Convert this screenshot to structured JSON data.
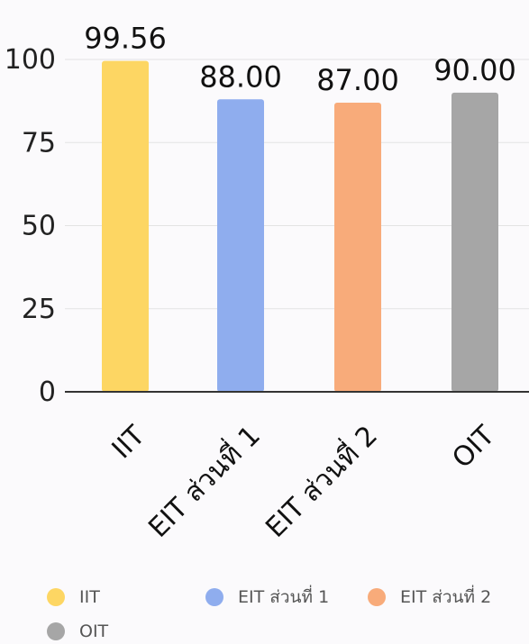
{
  "chart_data": {
    "type": "bar",
    "categories": [
      "IIT",
      "EIT ส่วนที่ 1",
      "EIT ส่วนที่ 2",
      "OIT"
    ],
    "values": [
      99.56,
      88.0,
      87.0,
      90.0
    ],
    "data_labels": [
      "99.56",
      "88.00",
      "87.00",
      "90.00"
    ],
    "colors": [
      "#fdd663",
      "#8fadee",
      "#f8ab7a",
      "#a6a6a6"
    ],
    "yticks": [
      0,
      25,
      50,
      75,
      100
    ],
    "ylim": [
      0,
      100
    ],
    "grid": true,
    "legend_position": "bottom",
    "title": "",
    "xlabel": "",
    "ylabel": ""
  },
  "legend": [
    {
      "label": "IIT",
      "color": "#fdd663"
    },
    {
      "label": "EIT ส่วนที่ 1",
      "color": "#8fadee"
    },
    {
      "label": "EIT ส่วนที่ 2",
      "color": "#f8ab7a"
    },
    {
      "label": "OIT",
      "color": "#a6a6a6"
    }
  ]
}
